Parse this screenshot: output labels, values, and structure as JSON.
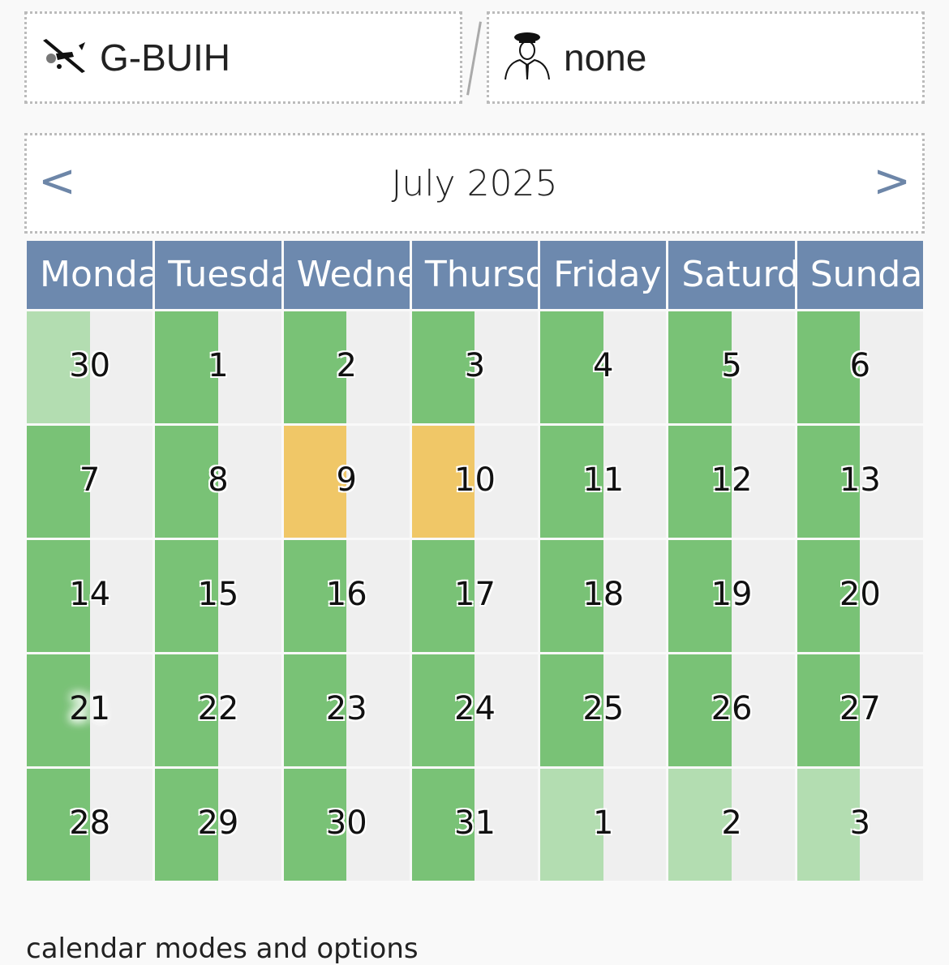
{
  "aircraft": {
    "icon": "airplane-icon",
    "registration": "G-BUIH"
  },
  "pilot": {
    "icon": "pilot-icon",
    "name": "none"
  },
  "calendar": {
    "month_label": "July 2025",
    "prev": "<",
    "next": ">",
    "weekdays": [
      "Monday",
      "Tuesday",
      "Wednesday",
      "Thursday",
      "Friday",
      "Saturday",
      "Sunday"
    ],
    "colors": {
      "available": "#79c276",
      "booked": "#f0c767",
      "other_month": "#b3ddb1",
      "empty": "#efefef",
      "header": "#6d89ae"
    },
    "today": "21",
    "weeks": [
      [
        {
          "day": "30",
          "status": "other_month"
        },
        {
          "day": "1",
          "status": "available"
        },
        {
          "day": "2",
          "status": "available"
        },
        {
          "day": "3",
          "status": "available"
        },
        {
          "day": "4",
          "status": "available"
        },
        {
          "day": "5",
          "status": "available"
        },
        {
          "day": "6",
          "status": "available"
        }
      ],
      [
        {
          "day": "7",
          "status": "available"
        },
        {
          "day": "8",
          "status": "available"
        },
        {
          "day": "9",
          "status": "booked"
        },
        {
          "day": "10",
          "status": "booked"
        },
        {
          "day": "11",
          "status": "available"
        },
        {
          "day": "12",
          "status": "available"
        },
        {
          "day": "13",
          "status": "available"
        }
      ],
      [
        {
          "day": "14",
          "status": "available"
        },
        {
          "day": "15",
          "status": "available"
        },
        {
          "day": "16",
          "status": "available"
        },
        {
          "day": "17",
          "status": "available"
        },
        {
          "day": "18",
          "status": "available"
        },
        {
          "day": "19",
          "status": "available"
        },
        {
          "day": "20",
          "status": "available"
        }
      ],
      [
        {
          "day": "21",
          "status": "available"
        },
        {
          "day": "22",
          "status": "available"
        },
        {
          "day": "23",
          "status": "available"
        },
        {
          "day": "24",
          "status": "available"
        },
        {
          "day": "25",
          "status": "available"
        },
        {
          "day": "26",
          "status": "available"
        },
        {
          "day": "27",
          "status": "available"
        }
      ],
      [
        {
          "day": "28",
          "status": "available"
        },
        {
          "day": "29",
          "status": "available"
        },
        {
          "day": "30",
          "status": "available"
        },
        {
          "day": "31",
          "status": "available"
        },
        {
          "day": "1",
          "status": "other_month"
        },
        {
          "day": "2",
          "status": "other_month"
        },
        {
          "day": "3",
          "status": "other_month"
        }
      ]
    ]
  },
  "footer": {
    "label": "calendar modes and options"
  }
}
